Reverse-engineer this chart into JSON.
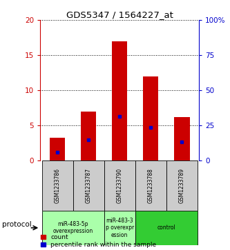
{
  "title": "GDS5347 / 1564227_at",
  "samples": [
    "GSM1233786",
    "GSM1233787",
    "GSM1233790",
    "GSM1233788",
    "GSM1233789"
  ],
  "count_values": [
    3.3,
    7.0,
    17.0,
    12.0,
    6.2
  ],
  "percentile_values": [
    1.2,
    3.0,
    6.3,
    4.7,
    2.7
  ],
  "ylim_left": [
    0,
    20
  ],
  "ylim_right": [
    0,
    100
  ],
  "yticks_left": [
    0,
    5,
    10,
    15,
    20
  ],
  "yticks_right": [
    0,
    25,
    50,
    75,
    100
  ],
  "ytick_labels_left": [
    "0",
    "5",
    "10",
    "15",
    "20"
  ],
  "ytick_labels_right": [
    "0",
    "25",
    "50",
    "75",
    "100%"
  ],
  "bar_color": "#cc0000",
  "percentile_color": "#0000cc",
  "protocol_label": "protocol",
  "legend_count_label": "count",
  "legend_percentile_label": "percentile rank within the sample",
  "bg_color": "#ffffff",
  "sample_cell_color": "#cccccc",
  "light_green": "#aaffaa",
  "dark_green": "#33cc33",
  "bar_width": 0.5,
  "group_info": [
    [
      0,
      2,
      "miR-483-5p\noverexpression",
      "#aaffaa"
    ],
    [
      2,
      3,
      "miR-483-3\np overexpr\nession",
      "#aaffaa"
    ],
    [
      3,
      5,
      "control",
      "#33cc33"
    ]
  ]
}
